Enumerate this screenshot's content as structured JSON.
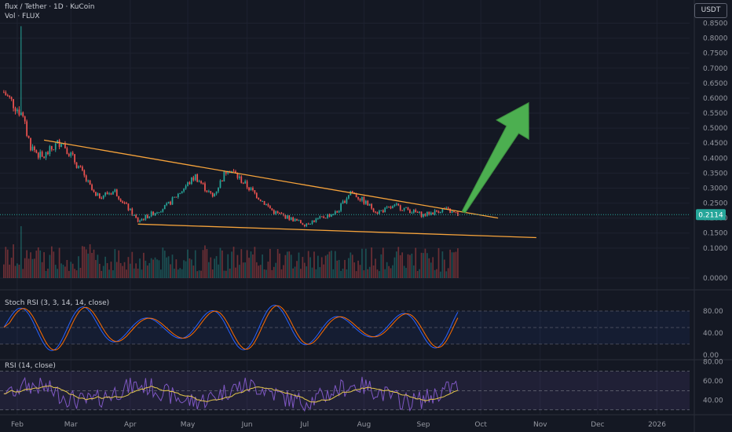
{
  "header": {
    "symbol_line": "flux / Tether · 1D · KuCoin",
    "volume_line": "Vol · FLUX",
    "currency": "USDT"
  },
  "price_badge": {
    "value": "0.2114",
    "color": "#26a69a"
  },
  "colors": {
    "background": "#141823",
    "up": "#26a69a",
    "down": "#ef5350",
    "trendline": "#f6a33b",
    "arrow": "#4caf50",
    "stoch_k": "#2962ff",
    "stoch_d": "#ff6d00",
    "rsi": "#7e57c2",
    "rsi_ma": "#e6c84b"
  },
  "chart_data": [
    {
      "type": "candlestick",
      "pane": "price",
      "y_ticks": [
        "0.8500",
        "0.8000",
        "0.7500",
        "0.7000",
        "0.6500",
        "0.6000",
        "0.5500",
        "0.5000",
        "0.4500",
        "0.4000",
        "0.3500",
        "0.3000",
        "0.2500",
        "0.2000",
        "0.1500",
        "0.1000",
        "0.0000"
      ],
      "x_ticks": [
        "Feb",
        "Mar",
        "Apr",
        "May",
        "Jun",
        "Jul",
        "Aug",
        "Sep",
        "Oct",
        "Nov",
        "Dec",
        "2026"
      ],
      "x_range": [
        "2025-01-23",
        "2026-01-18"
      ],
      "approx_close_path": [
        {
          "date": "2025-01-25",
          "close": 0.62
        },
        {
          "date": "2025-02-03",
          "close": 0.55
        },
        {
          "date": "2025-02-08",
          "close": 0.44
        },
        {
          "date": "2025-02-14",
          "close": 0.4
        },
        {
          "date": "2025-02-24",
          "close": 0.46
        },
        {
          "date": "2025-03-06",
          "close": 0.36
        },
        {
          "date": "2025-03-14",
          "close": 0.27
        },
        {
          "date": "2025-03-24",
          "close": 0.29
        },
        {
          "date": "2025-04-05",
          "close": 0.19
        },
        {
          "date": "2025-04-20",
          "close": 0.24
        },
        {
          "date": "2025-05-05",
          "close": 0.34
        },
        {
          "date": "2025-05-14",
          "close": 0.27
        },
        {
          "date": "2025-05-22",
          "close": 0.37
        },
        {
          "date": "2025-06-02",
          "close": 0.3
        },
        {
          "date": "2025-06-15",
          "close": 0.22
        },
        {
          "date": "2025-07-01",
          "close": 0.18
        },
        {
          "date": "2025-07-18",
          "close": 0.22
        },
        {
          "date": "2025-07-25",
          "close": 0.29
        },
        {
          "date": "2025-08-08",
          "close": 0.22
        },
        {
          "date": "2025-08-18",
          "close": 0.24
        },
        {
          "date": "2025-09-01",
          "close": 0.21
        },
        {
          "date": "2025-09-12",
          "close": 0.23
        },
        {
          "date": "2025-09-19",
          "close": 0.2114
        }
      ],
      "spike": {
        "date": "2025-02-03",
        "high": 0.84
      },
      "current_price": 0.2114,
      "trendlines": [
        {
          "name": "resistance",
          "from": {
            "date": "2025-02-15",
            "price": 0.46
          },
          "to": {
            "date": "2025-10-10",
            "price": 0.2
          }
        },
        {
          "name": "support",
          "from": {
            "date": "2025-04-05",
            "price": 0.18
          },
          "to": {
            "date": "2025-10-30",
            "price": 0.135
          }
        }
      ],
      "arrow": {
        "from": {
          "date": "2025-09-22",
          "price": 0.22
        },
        "to": {
          "date": "2025-10-26",
          "price": 0.585
        }
      }
    },
    {
      "type": "line",
      "pane": "stoch_rsi",
      "title": "Stoch RSI (3, 3, 14, 14, close)",
      "y_ticks": [
        "80.00",
        "40.00",
        "0.00"
      ],
      "bands": [
        80,
        20
      ],
      "ylim": [
        0,
        100
      ]
    },
    {
      "type": "line",
      "pane": "rsi",
      "title": "RSI (14, close)",
      "y_ticks": [
        "80.00",
        "60.00",
        "40.00"
      ],
      "bands": [
        70,
        30
      ],
      "ylim": [
        25,
        82
      ]
    }
  ]
}
